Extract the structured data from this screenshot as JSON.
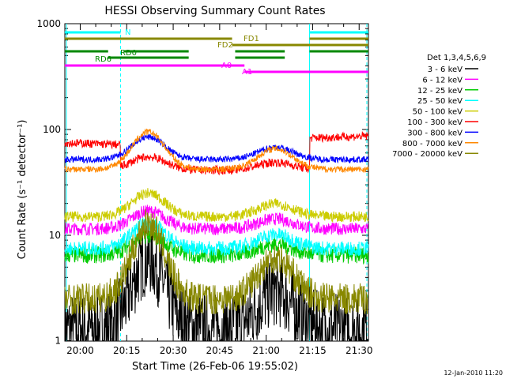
{
  "chart_data": {
    "type": "line",
    "title": "HESSI Observing Summary Count Rates",
    "xlabel": "Start Time (26-Feb-06 19:55:02)",
    "ylabel": "Count Rate (s⁻¹ detector⁻¹)",
    "y_scale": "log",
    "ylim": [
      1,
      1000
    ],
    "y_ticks": [
      {
        "value": 1,
        "label": "1"
      },
      {
        "value": 10,
        "label": "10"
      },
      {
        "value": 100,
        "label": "100"
      },
      {
        "value": 1000,
        "label": "1000"
      }
    ],
    "xlim": [
      "19:55:02",
      "21:33:00"
    ],
    "x_ticks": [
      "20:00",
      "20:15",
      "20:30",
      "20:45",
      "21:00",
      "21:15",
      "21:30"
    ],
    "legend_title": "Det 1,3,4,5,6,9",
    "series": [
      {
        "name": "3 - 6 keV",
        "color": "#000000",
        "shape": "hump",
        "base": 1.3,
        "peak": 6,
        "noise": 0.35
      },
      {
        "name": "6 - 12 keV",
        "color": "#ff00ff",
        "shape": "hump",
        "base": 11.5,
        "peak": 17,
        "noise": 0.06
      },
      {
        "name": "12 - 25 keV",
        "color": "#00cc00",
        "shape": "hump",
        "base": 6.5,
        "peak": 10,
        "noise": 0.08
      },
      {
        "name": "25 - 50 keV",
        "color": "#00ffff",
        "shape": "hump",
        "base": 7.5,
        "peak": 13,
        "noise": 0.07
      },
      {
        "name": "50 - 100 keV",
        "color": "#cccc00",
        "shape": "hump",
        "base": 15,
        "peak": 25,
        "noise": 0.05
      },
      {
        "name": "100 - 300 keV",
        "color": "#ff0000",
        "shape": "attenuated",
        "base": 72,
        "peak": 55,
        "noise": 0.04
      },
      {
        "name": "300 - 800 keV",
        "color": "#0000ff",
        "shape": "hump",
        "base": 52,
        "peak": 85,
        "noise": 0.03
      },
      {
        "name": "800 - 7000 keV",
        "color": "#ff8800",
        "shape": "hump",
        "base": 42,
        "peak": 95,
        "noise": 0.03
      },
      {
        "name": "7000 - 20000 keV",
        "color": "#888800",
        "shape": "hump",
        "base": 2.5,
        "peak": 13,
        "noise": 0.15
      }
    ],
    "flag_bars": [
      {
        "label": "N",
        "color": "#00ffff"
      },
      {
        "label": "FD1",
        "color": "#888800"
      },
      {
        "label": "FD2",
        "color": "#888800"
      },
      {
        "label": "RD0",
        "color": "#008800"
      },
      {
        "label": "RD6",
        "color": "#008800"
      },
      {
        "label": "A0",
        "color": "#ff00ff"
      },
      {
        "label": "A1",
        "color": "#ff00ff"
      }
    ],
    "footer_date": "12-Jan-2010 11:20"
  }
}
